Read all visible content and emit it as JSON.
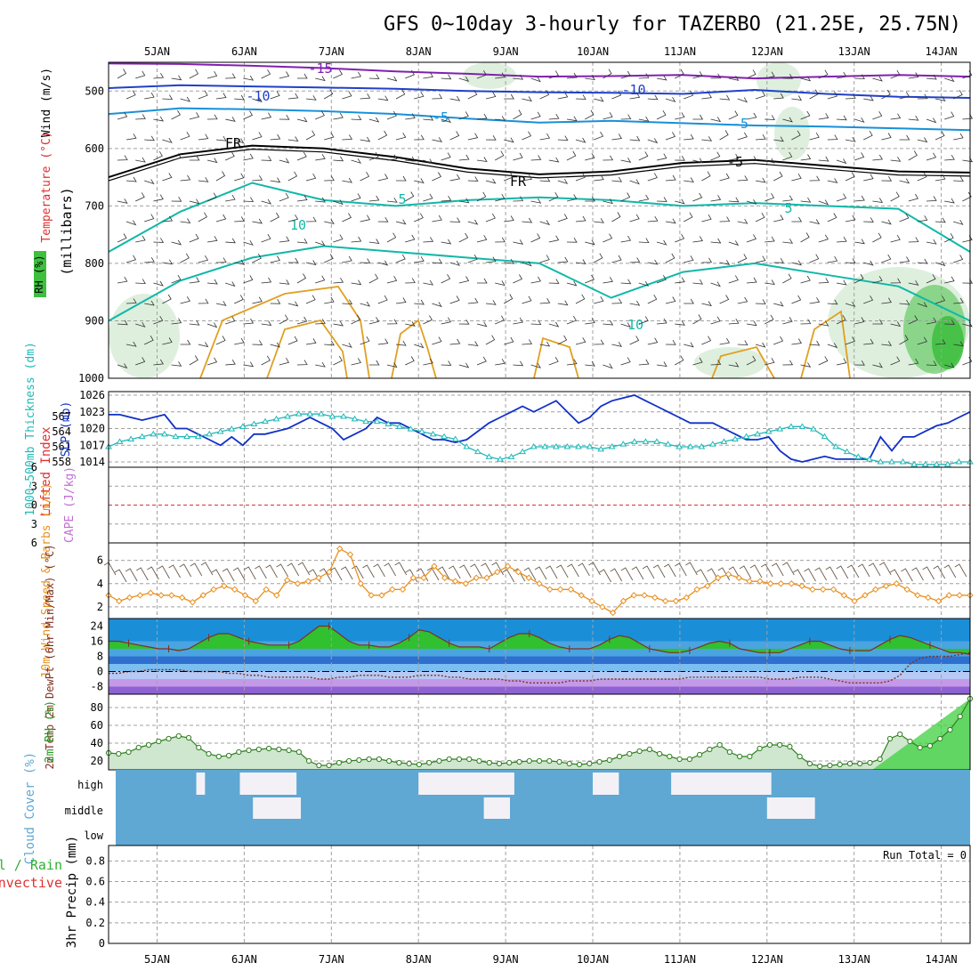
{
  "title": "GFS 0~10day 3-hourly for TAZERBO (21.25E, 25.75N)",
  "days": [
    "5JAN",
    "6JAN",
    "7JAN",
    "8JAN",
    "9JAN",
    "10JAN",
    "11JAN",
    "12JAN",
    "13JAN",
    "14JAN"
  ],
  "colors": {
    "grid": "#a0a0a0",
    "slp": "#1030c8",
    "thickness": "#20b8b8",
    "wind": "#e89020",
    "temp_fill": "#30c030",
    "temp_line": "#803020",
    "rh_line": "#308020",
    "cloud": "#5fa8d3",
    "contour_neg15": "#8020b0",
    "contour_neg10": "#2040c8",
    "contour_neg5": "#1890d8",
    "contour_fr": "#000000",
    "contour_pos": "#10b8a8",
    "contour_warm": "#e0a020"
  },
  "chart_data": [
    {
      "type": "contour",
      "name": "upper-air",
      "ylabel": "(millibars)",
      "side_labels": [
        "Wind (m/s)",
        "Temperature (°C)",
        "RH (%)"
      ],
      "yticks": [
        500,
        600,
        700,
        800,
        900,
        1000
      ],
      "ylim": [
        450,
        1000
      ],
      "contours": [
        {
          "label": "-15",
          "color_key": "contour_neg15",
          "p": [
            452,
            453,
            456,
            460,
            466,
            470,
            475,
            474,
            472,
            478,
            475,
            472,
            475
          ]
        },
        {
          "label": "-10",
          "color_key": "contour_neg10",
          "p": [
            495,
            490,
            492,
            494,
            496,
            500,
            502,
            503,
            505,
            498,
            505,
            510,
            512
          ]
        },
        {
          "label": "-5",
          "color_key": "contour_neg5",
          "p": [
            540,
            530,
            532,
            535,
            540,
            548,
            555,
            552,
            556,
            560,
            562,
            565,
            568
          ]
        },
        {
          "label": "FR",
          "color_key": "contour_fr",
          "p": [
            650,
            610,
            595,
            600,
            615,
            635,
            645,
            640,
            625,
            620,
            630,
            640,
            642
          ]
        },
        {
          "label": "5",
          "color_key": "contour_pos",
          "p": [
            780,
            710,
            660,
            690,
            700,
            690,
            685,
            690,
            700,
            695,
            700,
            705,
            780
          ]
        },
        {
          "label": "10",
          "color_key": "contour_pos",
          "p": [
            900,
            830,
            790,
            770,
            780,
            790,
            800,
            860,
            815,
            800,
            820,
            840,
            900
          ]
        }
      ],
      "inline_labels": [
        "-15",
        "-10",
        "-5",
        "FR",
        "5",
        "10",
        "-10",
        "-5",
        "FR",
        "-5",
        "5",
        "10"
      ]
    },
    {
      "type": "line",
      "name": "pressure-thickness",
      "ylabel_left": "1000~500mb Thickness (dm)",
      "ylabel_right": "SLP (mb)",
      "left_ticks": [
        558,
        561,
        564,
        567
      ],
      "right_ticks": [
        1014,
        1017,
        1020,
        1023,
        1026
      ],
      "series": [
        {
          "name": "SLP (mb)",
          "color_key": "slp",
          "values": [
            1022.5,
            1022.5,
            1022,
            1021.5,
            1022,
            1022.5,
            1020,
            1020,
            1019,
            1018,
            1017,
            1018.5,
            1017,
            1019,
            1019,
            1019.5,
            1020,
            1021,
            1022,
            1021,
            1020,
            1018,
            1019,
            1020,
            1022,
            1021,
            1021,
            1020,
            1019,
            1018,
            1018,
            1017.5,
            1018,
            1019.5,
            1021,
            1022,
            1023,
            1024,
            1023,
            1024,
            1025,
            1023,
            1021,
            1022,
            1024,
            1025,
            1025.5,
            1026,
            1025,
            1024,
            1023,
            1022,
            1021,
            1021,
            1021,
            1020,
            1019,
            1018,
            1018,
            1018.5,
            1016,
            1014.5,
            1014,
            1014.5,
            1015,
            1014.5,
            1014.5,
            1014.5,
            1014.5,
            1018.5,
            1016,
            1018.5,
            1018.5,
            1019.5,
            1020.5,
            1021,
            1022,
            1023
          ]
        },
        {
          "name": "Thickness (dm)",
          "color_key": "thickness",
          "values": [
            561,
            562,
            562.5,
            563,
            563.5,
            563.5,
            563,
            563,
            563,
            563.5,
            564,
            564.5,
            565,
            565.5,
            566,
            566.5,
            567,
            567.5,
            567.5,
            567.5,
            567,
            567,
            566.5,
            566,
            566,
            565.5,
            565,
            564.5,
            564,
            563.5,
            563,
            562.5,
            561,
            560,
            559,
            558.5,
            559,
            560,
            561,
            561,
            561,
            561,
            561,
            561,
            560.5,
            561,
            561.5,
            562,
            562,
            562,
            561.5,
            561,
            561,
            561,
            561.5,
            562,
            562.5,
            563,
            563.5,
            564,
            564.5,
            565,
            565,
            564.5,
            563,
            561,
            560,
            559,
            558.5,
            558,
            558,
            558,
            557.5,
            557.5,
            557.5,
            557.5,
            558,
            558
          ]
        }
      ]
    },
    {
      "type": "line",
      "name": "stability",
      "ylabel_left": "Lifted Index",
      "ylabel_right": "CAPE (J/kg)",
      "yticks": [
        -6,
        -3,
        0,
        3,
        6
      ],
      "tick_labels": [
        "6",
        "3",
        "0",
        "3",
        "6"
      ],
      "series": [
        {
          "name": "Lifted Index",
          "values": []
        },
        {
          "name": "CAPE",
          "values": []
        }
      ]
    },
    {
      "type": "line",
      "name": "wind10m",
      "ylabel": "10m Wind Speed & Barbs (m/s)",
      "yticks": [
        2,
        4,
        6
      ],
      "ylim": [
        1,
        7.5
      ],
      "series": [
        {
          "name": "10m Wind Speed",
          "color_key": "wind",
          "values": [
            3.0,
            2.5,
            2.8,
            3.0,
            3.2,
            3.0,
            3.0,
            2.8,
            2.4,
            3.0,
            3.5,
            3.8,
            3.5,
            3.0,
            2.5,
            3.5,
            3.0,
            4.3,
            4.0,
            4.2,
            4.5,
            5.0,
            7.0,
            6.5,
            4.0,
            3.0,
            3.0,
            3.5,
            3.5,
            4.5,
            4.5,
            5.5,
            4.5,
            4.2,
            4.0,
            4.5,
            4.5,
            5.0,
            5.5,
            5.0,
            4.5,
            4.0,
            3.5,
            3.5,
            3.5,
            3.0,
            2.5,
            2.0,
            1.5,
            2.5,
            3.0,
            3.0,
            2.8,
            2.5,
            2.5,
            2.8,
            3.5,
            3.8,
            4.5,
            4.8,
            4.5,
            4.2,
            4.2,
            4.0,
            4.0,
            4.0,
            3.8,
            3.5,
            3.5,
            3.5,
            3.0,
            2.5,
            3.0,
            3.5,
            3.8,
            4.0,
            3.5,
            3.0,
            2.8,
            2.5,
            3.0,
            3.0,
            3.0
          ]
        }
      ]
    },
    {
      "type": "area",
      "name": "temperature",
      "ylabel": "2m Temp 2m DewPt (6hr Min/Max) (°C)",
      "yticks": [
        -8,
        0,
        8,
        16,
        24
      ],
      "ylim": [
        -12,
        28
      ],
      "series": [
        {
          "name": "2m Temp",
          "color_key": "temp_line",
          "values": [
            16,
            16,
            15,
            14,
            13,
            12,
            12,
            11,
            12,
            15,
            18,
            20,
            20,
            18,
            16,
            15,
            14,
            14,
            14,
            16,
            20,
            24,
            24,
            20,
            16,
            14,
            14,
            13,
            13,
            15,
            18,
            22,
            21,
            18,
            15,
            13,
            13,
            13,
            12,
            15,
            18,
            20,
            20,
            18,
            15,
            13,
            12,
            12,
            12,
            14,
            17,
            19,
            18,
            15,
            12,
            11,
            10,
            10,
            11,
            13,
            15,
            16,
            15,
            12,
            11,
            10,
            10,
            10,
            12,
            14,
            16,
            16,
            14,
            12,
            11,
            11,
            11,
            14,
            17,
            19,
            18,
            16,
            14,
            12,
            10,
            10,
            9
          ]
        },
        {
          "name": "2m DewPt",
          "color_key": "temp_line",
          "values": [
            -1,
            -1,
            0,
            0,
            1,
            1,
            1,
            1,
            0,
            0,
            0,
            0,
            -1,
            -1,
            -2,
            -2,
            -3,
            -3,
            -3,
            -3,
            -3,
            -4,
            -4,
            -3,
            -3,
            -2,
            -2,
            -2,
            -3,
            -3,
            -3,
            -2,
            -2,
            -2,
            -3,
            -3,
            -4,
            -4,
            -4,
            -4,
            -5,
            -5,
            -6,
            -6,
            -6,
            -6,
            -5,
            -5,
            -5,
            -4,
            -4,
            -4,
            -4,
            -4,
            -4,
            -4,
            -4,
            -4,
            -3,
            -3,
            -3,
            -3,
            -3,
            -3,
            -3,
            -3,
            -4,
            -4,
            -4,
            -3,
            -3,
            -3,
            -4,
            -5,
            -6,
            -6,
            -6,
            -6,
            -5,
            -2,
            4,
            7,
            8,
            8,
            8,
            9,
            10
          ]
        }
      ]
    },
    {
      "type": "area",
      "name": "rh2m",
      "ylabel": "2m RH (%)",
      "yticks": [
        20,
        40,
        60,
        80
      ],
      "ylim": [
        10,
        95
      ],
      "series": [
        {
          "name": "2m RH",
          "color_key": "rh_line",
          "values": [
            29,
            28,
            30,
            35,
            38,
            42,
            45,
            48,
            46,
            35,
            28,
            25,
            26,
            30,
            32,
            33,
            34,
            33,
            32,
            30,
            20,
            15,
            15,
            18,
            20,
            21,
            22,
            22,
            20,
            18,
            17,
            16,
            18,
            20,
            22,
            22,
            22,
            20,
            18,
            17,
            18,
            19,
            20,
            20,
            20,
            19,
            17,
            16,
            17,
            19,
            21,
            25,
            28,
            31,
            33,
            28,
            25,
            22,
            22,
            27,
            33,
            38,
            30,
            25,
            25,
            34,
            38,
            38,
            36,
            25,
            17,
            14,
            15,
            16,
            17,
            17,
            18,
            22,
            45,
            50,
            42,
            35,
            37,
            45,
            55,
            70,
            90
          ]
        }
      ]
    },
    {
      "type": "heatmap",
      "name": "cloud-cover",
      "ylabel": "Cloud Cover (%)",
      "rows": [
        "high",
        "middle",
        "low"
      ],
      "intervals": [
        {
          "level": "high",
          "start_day": 0.45,
          "end_day": 0.55
        },
        {
          "level": "high",
          "start_day": 0.95,
          "end_day": 1.6
        },
        {
          "level": "high",
          "start_day": 3.0,
          "end_day": 4.1
        },
        {
          "level": "high",
          "start_day": 5.0,
          "end_day": 5.3
        },
        {
          "level": "high",
          "start_day": 5.9,
          "end_day": 7.05
        },
        {
          "level": "middle",
          "start_day": 1.1,
          "end_day": 1.65
        },
        {
          "level": "middle",
          "start_day": 3.75,
          "end_day": 4.05
        },
        {
          "level": "middle",
          "start_day": 7.0,
          "end_day": 7.55
        }
      ]
    },
    {
      "type": "bar",
      "name": "precip",
      "ylabel": "3hr Precip (mm)",
      "side_labels": [
        "Total / Rain",
        "Convective"
      ],
      "yticks": [
        0,
        0.2,
        0.4,
        0.6,
        0.8
      ],
      "ylim": [
        0,
        0.95
      ],
      "run_total_label": "Run Total = 0",
      "series": [
        {
          "name": "Total / Rain",
          "values": []
        },
        {
          "name": "Convective",
          "values": []
        }
      ]
    }
  ]
}
